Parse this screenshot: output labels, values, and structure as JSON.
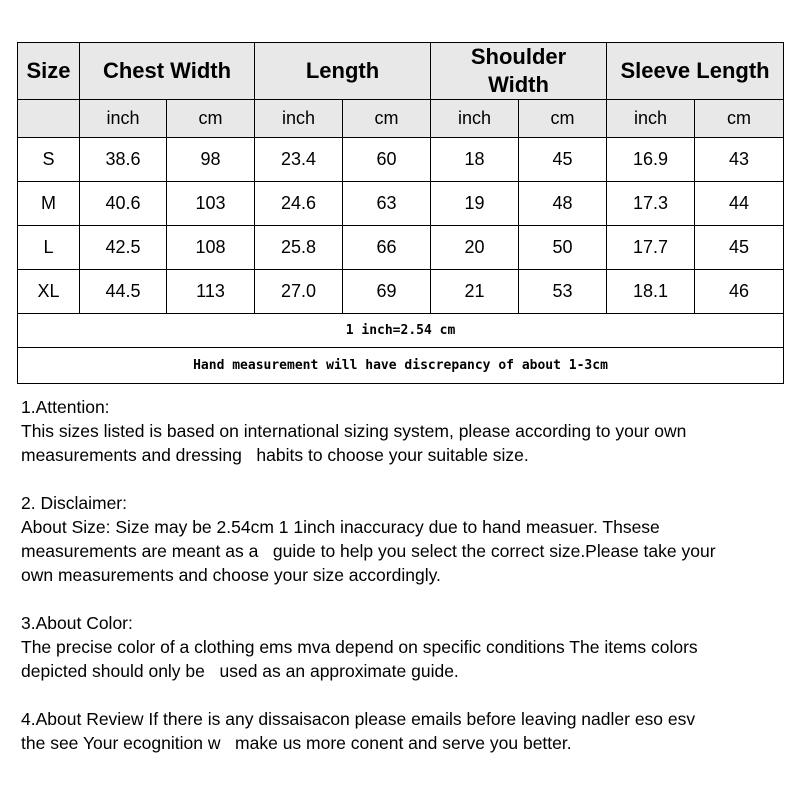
{
  "table": {
    "headers": [
      "Size",
      "Chest Width",
      "Length",
      "Shoulder Width",
      "Sleeve Length"
    ],
    "units": [
      "inch",
      "cm",
      "inch",
      "cm",
      "inch",
      "cm",
      "inch",
      "cm"
    ],
    "rows": [
      [
        "S",
        "38.6",
        "98",
        "23.4",
        "60",
        "18",
        "45",
        "16.9",
        "43"
      ],
      [
        "M",
        "40.6",
        "103",
        "24.6",
        "63",
        "19",
        "48",
        "17.3",
        "44"
      ],
      [
        "L",
        "42.5",
        "108",
        "25.8",
        "66",
        "20",
        "50",
        "17.7",
        "45"
      ],
      [
        "XL",
        "44.5",
        "113",
        "27.0",
        "69",
        "21",
        "53",
        "18.1",
        "46"
      ]
    ],
    "conversion_note": "1 inch=2.54 cm",
    "measurement_note": "Hand measurement will have discrepancy of about 1-3cm"
  },
  "notes": [
    {
      "lines": [
        "1.Attention:",
        "This sizes listed is based on international sizing system, please according to your own",
        "measurements and dressing   habits to choose your suitable size."
      ]
    },
    {
      "lines": [
        "2. Disclaimer:",
        "About Size: Size may be 2.54cm 1 1inch inaccuracy due to hand measuer. Thsese",
        "measurements are meant as a   guide to help you select the correct size.Please take your",
        "own measurements and choose your size accordingly."
      ]
    },
    {
      "lines": [
        "3.About Color:",
        "The precise color of a clothing ems mva depend on specific conditions The items colors",
        "depicted should only be   used as an approximate guide."
      ]
    },
    {
      "lines": [
        "4.About Review If there is any dissaisacon please emails before leaving nadler eso esv",
        "the see Your ecognition w   make us more conent and serve you better."
      ]
    }
  ]
}
